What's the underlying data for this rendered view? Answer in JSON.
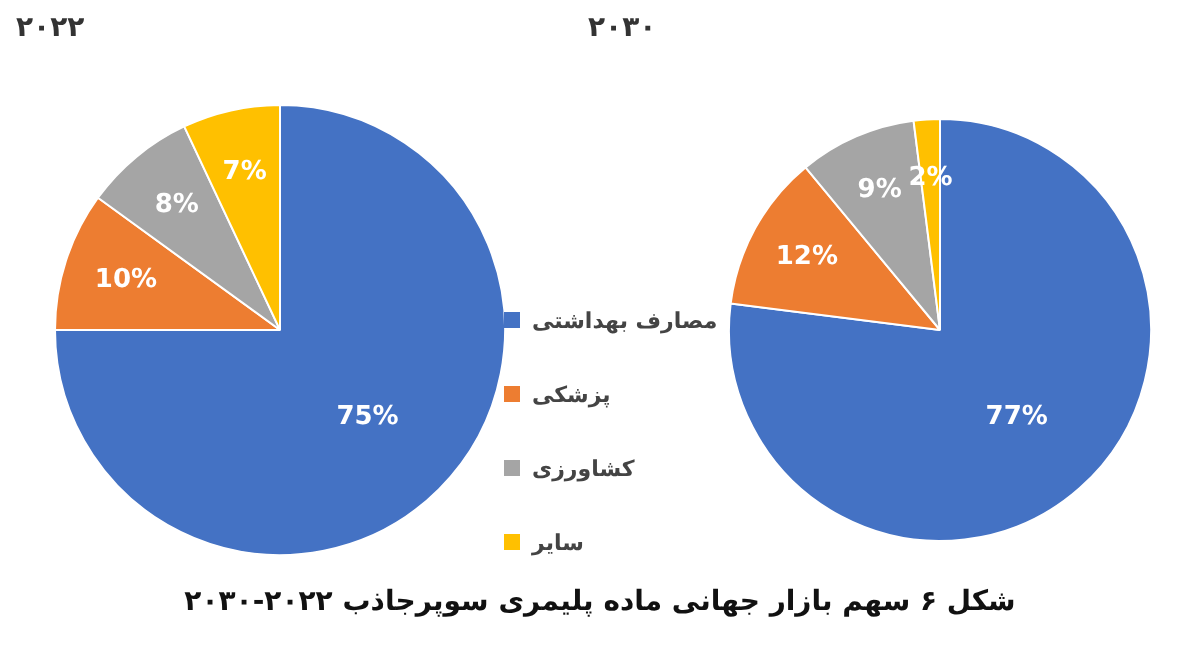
{
  "chart_data": [
    {
      "type": "pie",
      "title": "۲۰۲۲",
      "categories": [
        "مصارف بهداشتی",
        "پزشکی",
        "کشاورزی",
        "سایر"
      ],
      "values": [
        75,
        10,
        8,
        7
      ],
      "value_labels": [
        "75%",
        "10%",
        "8%",
        "7%"
      ],
      "colors": [
        "#4472c4",
        "#ed7d31",
        "#a5a5a5",
        "#ffc000"
      ],
      "legend": "right",
      "annotations": [
        "شکل ۶ سهم بازار جهانی ماده پلیمری سوپرجاذب ۲۰۲۲-۲۰۳۰"
      ]
    },
    {
      "type": "pie",
      "title": "۲۰۳۰",
      "categories": [
        null,
        null,
        null,
        null
      ],
      "values": [
        77,
        12,
        9,
        2
      ],
      "value_labels": [
        "77%",
        "12%",
        "9%",
        "2%"
      ],
      "colors": [
        "#4472c4",
        "#ed7d31",
        "#a5a5a5",
        "#ffc000"
      ]
    }
  ]
}
